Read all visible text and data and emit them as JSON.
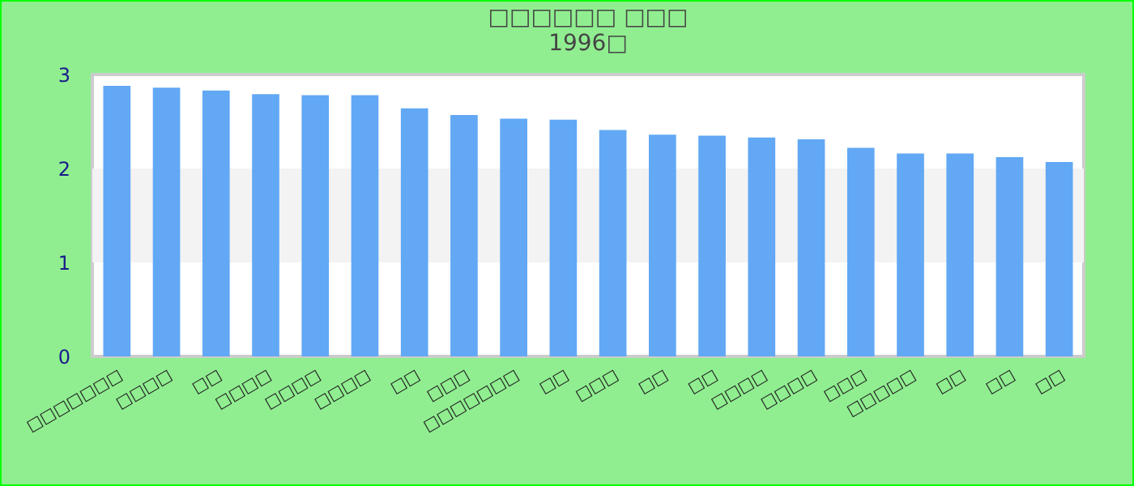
{
  "chart_data": {
    "type": "bar",
    "title": "□□□□□□ □□□",
    "subtitle": "1996□",
    "categories": [
      "□□□□□□□",
      "□□□□",
      "□□",
      "□□□□",
      "□□□□",
      "□□□□",
      "□□",
      "□□□",
      "□□□□□□□",
      "□□",
      "□□□",
      "□□",
      "□□",
      "□□□□",
      "□□□□",
      "□□□",
      "□□□□□",
      "□□",
      "□□",
      "□□"
    ],
    "values": [
      2.88,
      2.86,
      2.83,
      2.79,
      2.78,
      2.78,
      2.64,
      2.57,
      2.53,
      2.52,
      2.41,
      2.36,
      2.35,
      2.33,
      2.31,
      2.22,
      2.16,
      2.16,
      2.12,
      2.07
    ],
    "color": "#62a8f4",
    "ylim": [
      0,
      3
    ],
    "yticks": [
      0,
      1,
      2,
      3
    ],
    "grid": false,
    "bands": [
      {
        "axis": "y",
        "from": 1,
        "to": 2,
        "color": "#f3f3f3"
      }
    ]
  }
}
